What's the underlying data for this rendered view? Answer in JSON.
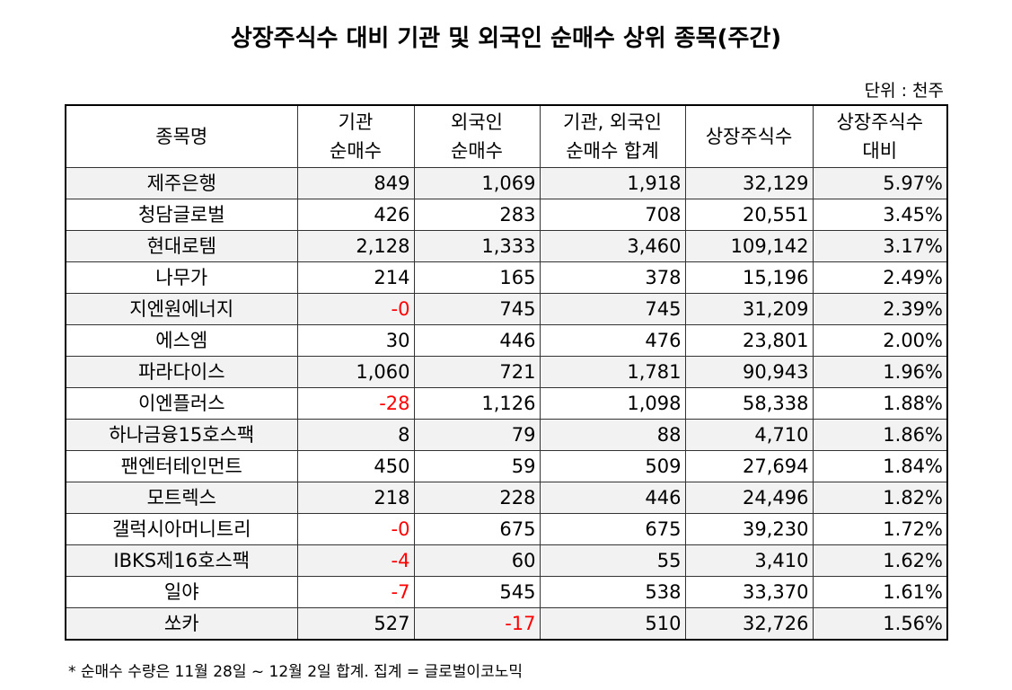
{
  "title": "상장주식수 대비 기관 및 외국인 순매수 상위 종목(주간)",
  "unit": "단위 : 천주",
  "headers": {
    "name": "종목명",
    "inst_line1": "기관",
    "inst_line2": "순매수",
    "foreign_line1": "외국인",
    "foreign_line2": "순매수",
    "sum_line1": "기관, 외국인",
    "sum_line2": "순매수 합계",
    "shares": "상장주식수",
    "ratio_line1": "상장주식수",
    "ratio_line2": "대비"
  },
  "rows": [
    {
      "name": "제주은행",
      "inst": "849",
      "foreign": "1,069",
      "sum": "1,918",
      "shares": "32,129",
      "ratio": "5.97%"
    },
    {
      "name": "청담글로벌",
      "inst": "426",
      "foreign": "283",
      "sum": "708",
      "shares": "20,551",
      "ratio": "3.45%"
    },
    {
      "name": "현대로템",
      "inst": "2,128",
      "foreign": "1,333",
      "sum": "3,460",
      "shares": "109,142",
      "ratio": "3.17%"
    },
    {
      "name": "나무가",
      "inst": "214",
      "foreign": "165",
      "sum": "378",
      "shares": "15,196",
      "ratio": "2.49%"
    },
    {
      "name": "지엔원에너지",
      "inst": "-0",
      "foreign": "745",
      "sum": "745",
      "shares": "31,209",
      "ratio": "2.39%"
    },
    {
      "name": "에스엠",
      "inst": "30",
      "foreign": "446",
      "sum": "476",
      "shares": "23,801",
      "ratio": "2.00%"
    },
    {
      "name": "파라다이스",
      "inst": "1,060",
      "foreign": "721",
      "sum": "1,781",
      "shares": "90,943",
      "ratio": "1.96%"
    },
    {
      "name": "이엔플러스",
      "inst": "-28",
      "foreign": "1,126",
      "sum": "1,098",
      "shares": "58,338",
      "ratio": "1.88%"
    },
    {
      "name": "하나금융15호스팩",
      "inst": "8",
      "foreign": "79",
      "sum": "88",
      "shares": "4,710",
      "ratio": "1.86%"
    },
    {
      "name": "팬엔터테인먼트",
      "inst": "450",
      "foreign": "59",
      "sum": "509",
      "shares": "27,694",
      "ratio": "1.84%"
    },
    {
      "name": "모트렉스",
      "inst": "218",
      "foreign": "228",
      "sum": "446",
      "shares": "24,496",
      "ratio": "1.82%"
    },
    {
      "name": "갤럭시아머니트리",
      "inst": "-0",
      "foreign": "675",
      "sum": "675",
      "shares": "39,230",
      "ratio": "1.72%"
    },
    {
      "name": "IBKS제16호스팩",
      "inst": "-4",
      "foreign": "60",
      "sum": "55",
      "shares": "3,410",
      "ratio": "1.62%"
    },
    {
      "name": "일야",
      "inst": "-7",
      "foreign": "545",
      "sum": "538",
      "shares": "33,370",
      "ratio": "1.61%"
    },
    {
      "name": "쏘카",
      "inst": "527",
      "foreign": "-17",
      "sum": "510",
      "shares": "32,726",
      "ratio": "1.56%"
    }
  ],
  "colors": {
    "negative": "#ff0000",
    "row_shade": "#f2f2f2"
  },
  "footnote": "* 순매수 수량은 11월 28일 ~ 12월 2일 합계.  집계 = 글로벌이코노믹"
}
